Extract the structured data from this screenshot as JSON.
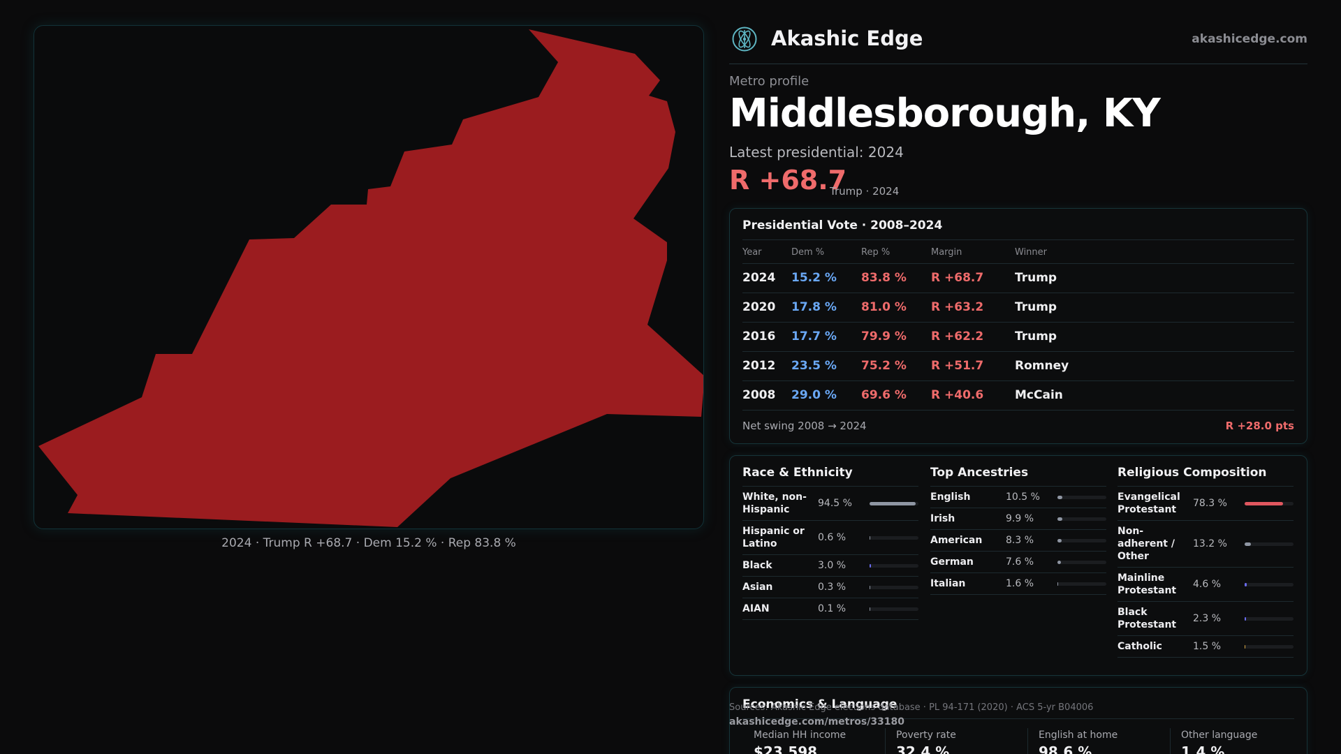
{
  "map": {
    "caption": "2024 · Trump R +68.7 · Dem 15.2 % · Rep 83.8 %",
    "fill_color": "#9b1c1f"
  },
  "header": {
    "brand": "Akashic Edge",
    "site": "akashicedge.com",
    "logo_icon": "atom-logo-icon"
  },
  "profile": {
    "eyebrow": "Metro profile",
    "title": "Middlesborough, KY",
    "latest_label": "Latest presidential: 2024",
    "margin": "R +68.7",
    "margin_sub": "Trump · 2024"
  },
  "presidential": {
    "title": "Presidential Vote · 2008–2024",
    "columns": [
      "Year",
      "Dem %",
      "Rep %",
      "Margin",
      "Winner"
    ],
    "rows": [
      {
        "year": "2024",
        "dem": "15.2 %",
        "rep": "83.8 %",
        "margin": "R +68.7",
        "winner": "Trump"
      },
      {
        "year": "2020",
        "dem": "17.8 %",
        "rep": "81.0 %",
        "margin": "R +63.2",
        "winner": "Trump"
      },
      {
        "year": "2016",
        "dem": "17.7 %",
        "rep": "79.9 %",
        "margin": "R +62.2",
        "winner": "Trump"
      },
      {
        "year": "2012",
        "dem": "23.5 %",
        "rep": "75.2 %",
        "margin": "R +51.7",
        "winner": "Romney"
      },
      {
        "year": "2008",
        "dem": "29.0 %",
        "rep": "69.6 %",
        "margin": "R +40.6",
        "winner": "McCain"
      }
    ],
    "swing_label": "Net swing 2008 → 2024",
    "swing_value": "R +28.0 pts"
  },
  "race": {
    "title": "Race & Ethnicity",
    "items": [
      {
        "label": "White, non-Hispanic",
        "pct": "94.5 %",
        "value": 94.5,
        "color": "#8f96a3"
      },
      {
        "label": "Hispanic or Latino",
        "pct": "0.6 %",
        "value": 0.6,
        "color": "#8f96a3"
      },
      {
        "label": "Black",
        "pct": "3.0 %",
        "value": 3.0,
        "color": "#6a6cf0"
      },
      {
        "label": "Asian",
        "pct": "0.3 %",
        "value": 0.3,
        "color": "#8f96a3"
      },
      {
        "label": "AIAN",
        "pct": "0.1 %",
        "value": 0.1,
        "color": "#8f96a3"
      }
    ]
  },
  "ancestry": {
    "title": "Top Ancestries",
    "items": [
      {
        "label": "English",
        "pct": "10.5 %",
        "value": 10.5,
        "color": "#8f96a3"
      },
      {
        "label": "Irish",
        "pct": "9.9 %",
        "value": 9.9,
        "color": "#8f96a3"
      },
      {
        "label": "American",
        "pct": "8.3 %",
        "value": 8.3,
        "color": "#8f96a3"
      },
      {
        "label": "German",
        "pct": "7.6 %",
        "value": 7.6,
        "color": "#8f96a3"
      },
      {
        "label": "Italian",
        "pct": "1.6 %",
        "value": 1.6,
        "color": "#8f96a3"
      }
    ]
  },
  "religion": {
    "title": "Religious Composition",
    "items": [
      {
        "label": "Evangelical Protestant",
        "pct": "78.3 %",
        "value": 78.3,
        "color": "#e0575f"
      },
      {
        "label": "Non-adherent / Other",
        "pct": "13.2 %",
        "value": 13.2,
        "color": "#8f96a3"
      },
      {
        "label": "Mainline Protestant",
        "pct": "4.6 %",
        "value": 4.6,
        "color": "#6a6cf0"
      },
      {
        "label": "Black Protestant",
        "pct": "2.3 %",
        "value": 2.3,
        "color": "#6a6cf0"
      },
      {
        "label": "Catholic",
        "pct": "1.5 %",
        "value": 1.5,
        "color": "#d9a640"
      }
    ]
  },
  "economics": {
    "title": "Economics & Language",
    "cells": [
      {
        "label": "Median HH income",
        "value": "$23,598"
      },
      {
        "label": "Poverty rate",
        "value": "32.4 %"
      },
      {
        "label": "English at home",
        "value": "98.6 %"
      },
      {
        "label": "Other language",
        "value": "1.4 %"
      }
    ]
  },
  "footer": {
    "sources": "Sources: Akashic Edge elections database · PL 94-171 (2020) · ACS 5-yr B04006",
    "permalink": "akashicedge.com/metros/33180"
  }
}
